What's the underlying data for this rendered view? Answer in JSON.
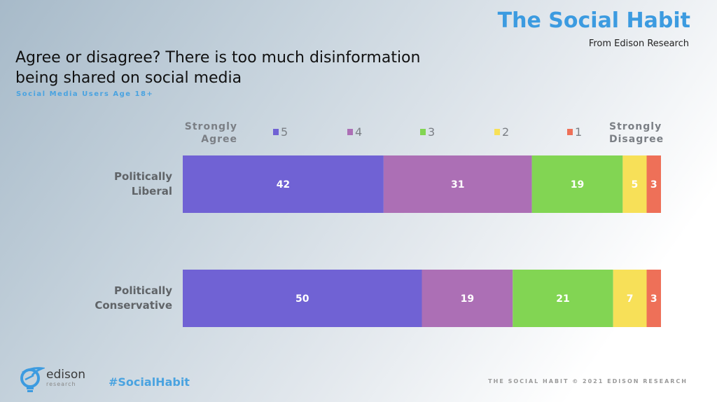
{
  "header": {
    "brand_title": "The Social Habit",
    "brand_subtitle": "From Edison Research",
    "question": "Agree or disagree? There is too much disinformation being shared on social media",
    "base": "Social Media Users Age 18+"
  },
  "footer": {
    "logo_main": "edison",
    "logo_sub": "research",
    "hashtag": "#SocialHabit",
    "copyright": "THE SOCIAL HABIT © 2021 EDISON RESEARCH"
  },
  "colors": {
    "brand_blue": "#3c9be0",
    "s5": "#7062d4",
    "s4": "#ac6fb5",
    "s3": "#82d553",
    "s2": "#f7e058",
    "s1": "#ee7058"
  },
  "chart_data": {
    "type": "bar",
    "orientation": "horizontal",
    "stacked": true,
    "title": "Agree or disagree? There is too much disinformation being shared on social media",
    "subtitle": "Social Media Users Age 18+",
    "xlabel": "",
    "ylabel": "",
    "xlim": [
      0,
      100
    ],
    "grid": false,
    "legend_position": "top",
    "legend_left_label": "Strongly Agree",
    "legend_right_label": "Strongly Disagree",
    "categories": [
      "Politically Liberal",
      "Politically Conservative"
    ],
    "category_lines": [
      [
        "Politically",
        "Liberal"
      ],
      [
        "Politically",
        "Conservative"
      ]
    ],
    "series": [
      {
        "name": "5",
        "color": "#7062d4",
        "values": [
          42,
          50
        ]
      },
      {
        "name": "4",
        "color": "#ac6fb5",
        "values": [
          31,
          19
        ]
      },
      {
        "name": "3",
        "color": "#82d553",
        "values": [
          19,
          21
        ]
      },
      {
        "name": "2",
        "color": "#f7e058",
        "values": [
          5,
          7
        ]
      },
      {
        "name": "1",
        "color": "#ee7058",
        "values": [
          3,
          3
        ]
      }
    ]
  }
}
